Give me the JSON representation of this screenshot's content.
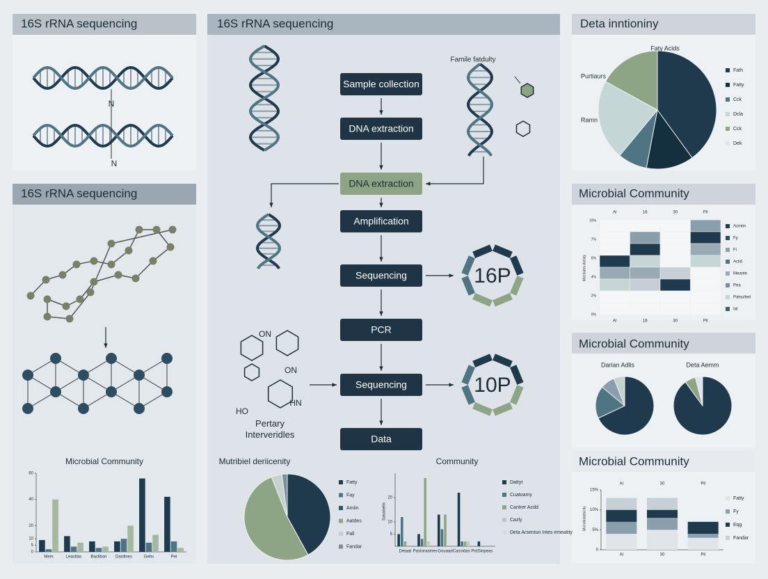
{
  "left": {
    "header_top": "16S rRNA sequencing",
    "n_labels": [
      "N",
      "N"
    ],
    "header_mid": "16S rRNA sequencing",
    "chart": {
      "type": "bar",
      "title": "Microbial Community",
      "categories": [
        "Mem",
        "Leastlas",
        "Baclibon",
        "Dardines",
        "Gehs",
        "Pel"
      ],
      "series": [
        {
          "color": "#1e3a4c",
          "values": [
            9,
            12,
            8,
            8,
            56,
            42
          ]
        },
        {
          "color": "#4f7585",
          "values": [
            2,
            4,
            3,
            10,
            7,
            8
          ]
        },
        {
          "color": "#a3b89c",
          "values": [
            40,
            7,
            4,
            20,
            13,
            3
          ]
        }
      ],
      "ylim": [
        0,
        60
      ],
      "yticks": [
        0,
        5,
        10,
        20,
        40,
        60
      ]
    }
  },
  "middle": {
    "header": "16S rRNA sequencing",
    "steps": [
      "Sample collection",
      "DNA extraction",
      "DNA extraction",
      "Amplification",
      "Sequencing",
      "PCR",
      "Sequencing",
      "Data"
    ],
    "side_label": "Famile fatdulty",
    "rings": [
      "16P",
      "10P"
    ],
    "molecule_labels": [
      "ON",
      "ON",
      "HN",
      "HO"
    ],
    "molecule_caption": "Pertary Interveridles",
    "pie": {
      "type": "pie",
      "title": "Mutribiel deriicenity",
      "labels": [
        "Fatty",
        "Fay",
        "Amiin",
        "Aatdes",
        "Fall",
        "Fandar"
      ],
      "colors": [
        "#1e3a4c",
        "#4f7585",
        "#2f5567",
        "#8ea585",
        "#c5d3cf",
        "#7f8d96"
      ],
      "values": [
        42,
        0,
        0,
        52,
        4,
        2
      ]
    },
    "bar": {
      "type": "bar",
      "title": "Community",
      "y_label": "Sasanetis",
      "categories": [
        "Detaat",
        "Pastorastnes",
        "Gouaad",
        "Cassidas Prd",
        "Sinpeas"
      ],
      "series": [
        {
          "name": "Dattyt",
          "color": "#1e3a4c",
          "values": [
            5,
            5,
            13,
            22,
            2
          ]
        },
        {
          "name": "Cuatoamy",
          "color": "#4f7585",
          "values": [
            12,
            3,
            7,
            2,
            0
          ]
        },
        {
          "name": "Cantrer Acdd",
          "color": "#8ea585",
          "values": [
            2,
            28,
            13,
            2,
            0
          ]
        },
        {
          "name": "Cazly",
          "color": "#b9c8c3",
          "values": [
            0,
            2,
            0,
            2,
            0
          ]
        },
        {
          "name": "Deta Arsentun Intes emeatity",
          "color": "#d7dfe2",
          "values": [
            0,
            0,
            0,
            0,
            0
          ]
        }
      ],
      "ylim": [
        0,
        30
      ],
      "yticks": [
        5,
        10,
        20
      ]
    }
  },
  "right": {
    "pie": {
      "type": "pie",
      "title": "Deta inntioniny",
      "annotations": [
        "Faty Acids",
        "Purtiaurs",
        "Ramn"
      ],
      "labels": [
        "Fath",
        "Fatty",
        "Cck",
        "Dcla",
        "Cck",
        "Dek"
      ],
      "colors": [
        "#1e3a4c",
        "#14303f",
        "#4f7585",
        "#c5d6d6",
        "#8ea585",
        "#dfe5e8"
      ],
      "values": [
        40,
        13,
        8,
        22,
        17,
        0
      ]
    },
    "heatmap": {
      "title": "Microbial Community",
      "y_label": "Mierbiatro Actisty",
      "columns": [
        "Al",
        "16",
        "30",
        "Pil"
      ],
      "yticks": [
        "0%",
        "2%",
        "4%",
        "6%",
        "7%",
        "10%"
      ],
      "labels": [
        "Acmiin",
        "Fy",
        "Fi",
        "Acild",
        "Meante",
        "Pea",
        "Patsulted",
        "Ial"
      ],
      "colors": [
        "#1e3a4c",
        "#2b4a5b",
        "#8b9eac",
        "#4f7585",
        "#9aaab5",
        "#7b8e9a",
        "#c6d6d6",
        "#40606e"
      ],
      "cells": [
        [
          "#f4f6f7",
          "#f4f6f7",
          "#f4f6f7",
          "#1e3a4c",
          "#9aaab5",
          "#c6d6d6",
          "#f4f6f7",
          "#f4f6f7"
        ],
        [
          "#f4f6f7",
          "#8b9eac",
          "#1e3a4c",
          "#c6d6d6",
          "#9aaab5",
          "#c7ced6",
          "#f4f6f7",
          "#f4f6f7"
        ],
        [
          "#f4f6f7",
          "#f4f6f7",
          "#f4f6f7",
          "#f4f6f7",
          "#c6d0d6",
          "#1e3a4c",
          "#f4f6f7",
          "#f4f6f7"
        ],
        [
          "#8b9eac",
          "#1e3a4c",
          "#9aaab5",
          "#c6d6d6",
          "#f4f6f7",
          "#f4f6f7",
          "#f4f6f7",
          "#f4f6f7"
        ]
      ]
    },
    "pies_title": "Microbial Community",
    "pies": [
      {
        "type": "pie",
        "title": "Darian Adlis",
        "colors": [
          "#1e3a4c",
          "#4f7585",
          "#8b9eac",
          "#c5d3cf"
        ],
        "values": [
          68,
          18,
          8,
          6
        ]
      },
      {
        "type": "pie",
        "title": "Deta Aemm",
        "colors": [
          "#1e3a4c",
          "#8ea585",
          "#dfe5e8"
        ],
        "values": [
          90,
          6,
          4
        ]
      }
    ],
    "stack": {
      "type": "stacked_bar",
      "title": "Microbial Community",
      "y_label": "Microbiotatsicity",
      "categories": [
        "Al",
        "30",
        "Pil"
      ],
      "series": [
        {
          "name": "Fatty",
          "color": "#dfe5e8",
          "values": [
            4,
            5,
            3
          ]
        },
        {
          "name": "Fy",
          "color": "#8b9eac",
          "values": [
            3,
            3,
            1
          ]
        },
        {
          "name": "Eqg",
          "color": "#1e3a4c",
          "values": [
            3,
            2,
            3
          ]
        },
        {
          "name": "Fandar",
          "color": "#c7d0d6",
          "values": [
            3,
            3,
            0
          ]
        }
      ],
      "ylim": [
        0,
        15
      ],
      "yticks": [
        0,
        {
          "value": 5,
          "label": "5%"
        },
        {
          "value": 10,
          "label": "10%"
        },
        {
          "value": 15,
          "label": "15%"
        }
      ]
    }
  }
}
